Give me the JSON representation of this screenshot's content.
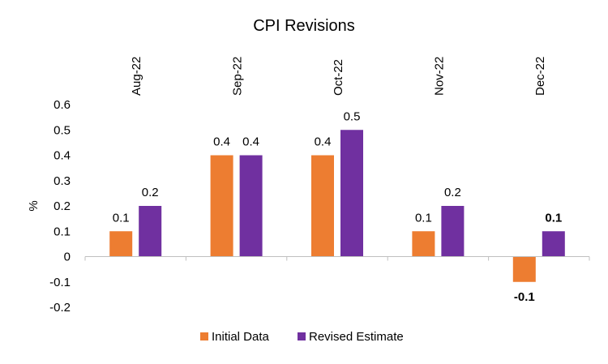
{
  "chart_data": {
    "type": "bar",
    "title": "CPI Revisions",
    "ylabel": "%",
    "xlabel": "",
    "categories": [
      "Aug-22",
      "Sep-22",
      "Oct-22",
      "Nov-22",
      "Dec-22"
    ],
    "series": [
      {
        "name": "Initial Data",
        "color": "#ED7D31",
        "values": [
          0.1,
          0.4,
          0.4,
          0.1,
          -0.1
        ],
        "labels": [
          "0.1",
          "0.4",
          "0.4",
          "0.1",
          "-0.1"
        ],
        "bold_labels": [
          false,
          false,
          false,
          false,
          true
        ]
      },
      {
        "name": "Revised Estimate",
        "color": "#7030A0",
        "values": [
          0.2,
          0.4,
          0.5,
          0.2,
          0.1
        ],
        "labels": [
          "0.2",
          "0.4",
          "0.5",
          "0.2",
          "0.1"
        ],
        "bold_labels": [
          false,
          false,
          false,
          false,
          true
        ]
      }
    ],
    "y_ticks": [
      -0.2,
      -0.1,
      0,
      0.1,
      0.2,
      0.3,
      0.4,
      0.5,
      0.6
    ],
    "y_tick_labels": [
      "-0.2",
      "-0.1",
      "0",
      "0.1",
      "0.2",
      "0.3",
      "0.4",
      "0.5",
      "0.6"
    ],
    "ylim": [
      -0.2,
      0.6
    ],
    "grid": false,
    "legend_position": "bottom",
    "category_labels_position": "top-rotated"
  }
}
